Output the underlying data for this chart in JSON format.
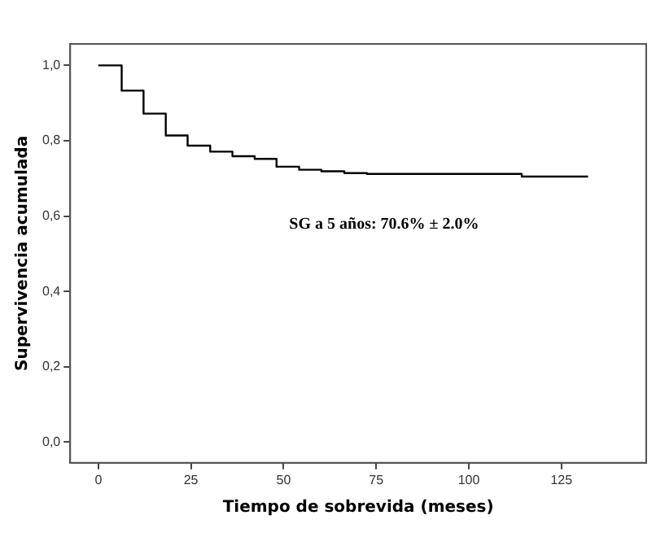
{
  "chart_data": {
    "type": "step",
    "xlabel": "Tiempo de sobrevida (meses)",
    "ylabel": "Supervivencia acumulada",
    "x": [
      0,
      6.3,
      12.2,
      18.2,
      24.1,
      30.2,
      36.2,
      42.2,
      48.1,
      54.2,
      60.2,
      66.4,
      72.5,
      114.3,
      132.2
    ],
    "series": [
      {
        "color": "#000000",
        "values": [
          1.0,
          0.933,
          0.872,
          0.814,
          0.787,
          0.771,
          0.759,
          0.752,
          0.731,
          0.723,
          0.719,
          0.714,
          0.712,
          0.705,
          0.705
        ]
      }
    ],
    "xlim": [
      -7.6,
      147.9
    ],
    "xticks": [
      0,
      25,
      50,
      75,
      100,
      125
    ],
    "ylim": [
      -0.055,
      1.057
    ],
    "yticks": [
      {
        "value": 0,
        "label": "0,0"
      },
      {
        "value": 0.2,
        "label": "0,2"
      },
      {
        "value": 0.4,
        "label": "0,4"
      },
      {
        "value": 0.6,
        "label": "0,6"
      },
      {
        "value": 0.8,
        "label": "0,8"
      },
      {
        "value": 1,
        "label": "1,0"
      }
    ],
    "annotations": [
      "SG a 5 años: 70.6% ± 2.0%"
    ],
    "grid": false,
    "legend": false,
    "marker": "none",
    "line_style": "solid"
  }
}
